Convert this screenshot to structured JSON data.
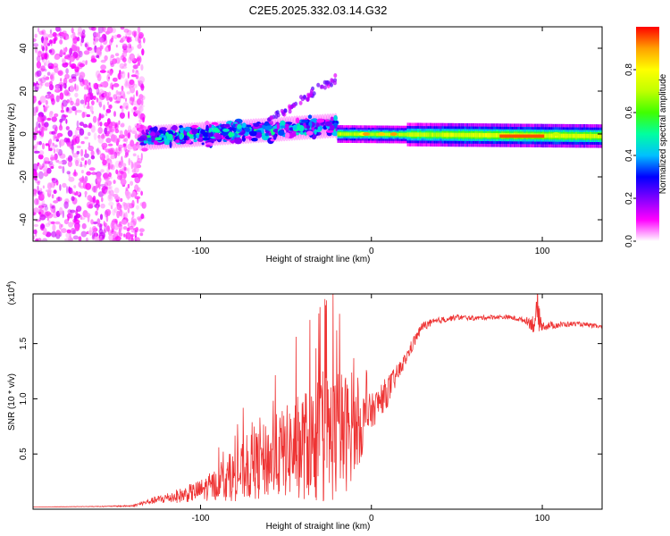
{
  "chart_data": [
    {
      "type": "heatmap",
      "title": "C2E5.2025.332.03.14.G32",
      "xlabel": "Height of straight line (km)",
      "ylabel": "Frequency (Hz)",
      "xlim": [
        -198,
        135
      ],
      "ylim": [
        -50,
        50
      ],
      "x_ticks": [
        -100,
        0,
        100
      ],
      "y_ticks": [
        -40,
        -20,
        0,
        20,
        40
      ],
      "colorbar": {
        "label": "Normalized spectral amplitude",
        "range": [
          0,
          1
        ],
        "ticks": [
          "0.0",
          "0.2",
          "0.4",
          "0.6",
          "0.8"
        ],
        "tick_values": [
          0.0,
          0.2,
          0.4,
          0.6,
          0.8
        ],
        "stops": [
          "#ffffff",
          "#ff00ff",
          "#8000ff",
          "#0000ff",
          "#00c0ff",
          "#00ffa0",
          "#40ff00",
          "#c0ff00",
          "#ffff00",
          "#ffa000",
          "#ff0000"
        ]
      },
      "regions": [
        {
          "description": "scattered low-amplitude noise",
          "x_range": [
            -198,
            -133
          ],
          "freq_range": [
            -50,
            50
          ],
          "amplitude": 0.1
        },
        {
          "description": "meteor echo band, broad",
          "x_range": [
            -135,
            -20
          ],
          "freq_center": [
            -2,
            4
          ],
          "amplitude": 0.45
        },
        {
          "description": "meteor echo band, narrow",
          "x_range": [
            -20,
            135
          ],
          "freq_center": [
            0,
            -1
          ],
          "amplitude": 0.7
        },
        {
          "description": "peak amplitude",
          "x_range": [
            75,
            100
          ],
          "freq_center": -1,
          "amplitude": 1.0
        }
      ]
    },
    {
      "type": "line",
      "xlabel": "Height of straight line (km)",
      "ylabel": "SNR (10 * v/v)",
      "y_scale_label": "(x10",
      "y_scale_exp": "4",
      "xlim": [
        -198,
        135
      ],
      "ylim": [
        0,
        19500
      ],
      "x_ticks": [
        -100,
        0,
        100
      ],
      "y_ticks": [
        5000,
        10000,
        15000
      ],
      "y_tick_labels": [
        "0.5",
        "1.0",
        "1.5"
      ],
      "color": "#ee3333",
      "series": [
        {
          "name": "SNR",
          "x": [
            -198,
            -160,
            -140,
            -130,
            -120,
            -110,
            -100,
            -90,
            -80,
            -70,
            -60,
            -50,
            -40,
            -35,
            -30,
            -25,
            -20,
            -15,
            -10,
            -5,
            0,
            5,
            10,
            15,
            20,
            25,
            30,
            40,
            50,
            60,
            70,
            80,
            90,
            95,
            97,
            100,
            110,
            120,
            135
          ],
          "y": [
            200,
            250,
            300,
            700,
            1000,
            1300,
            1700,
            2300,
            3000,
            3800,
            4500,
            5200,
            5800,
            6000,
            6200,
            6500,
            6800,
            6900,
            7200,
            7800,
            8800,
            9800,
            10800,
            12200,
            13600,
            15200,
            16600,
            17100,
            17400,
            17300,
            17400,
            17400,
            17100,
            16800,
            17600,
            16600,
            16700,
            16800,
            16500
          ],
          "spike_amplitude": [
            0,
            30,
            80,
            250,
            500,
            700,
            1000,
            1500,
            2300,
            3000,
            3600,
            4200,
            5000,
            5200,
            6000,
            6200,
            6000,
            5500,
            4000,
            3000,
            1600,
            1500,
            1400,
            900,
            600,
            600,
            400,
            300,
            250,
            200,
            200,
            200,
            250,
            900,
            1600,
            400,
            300,
            200,
            200
          ]
        }
      ]
    }
  ]
}
